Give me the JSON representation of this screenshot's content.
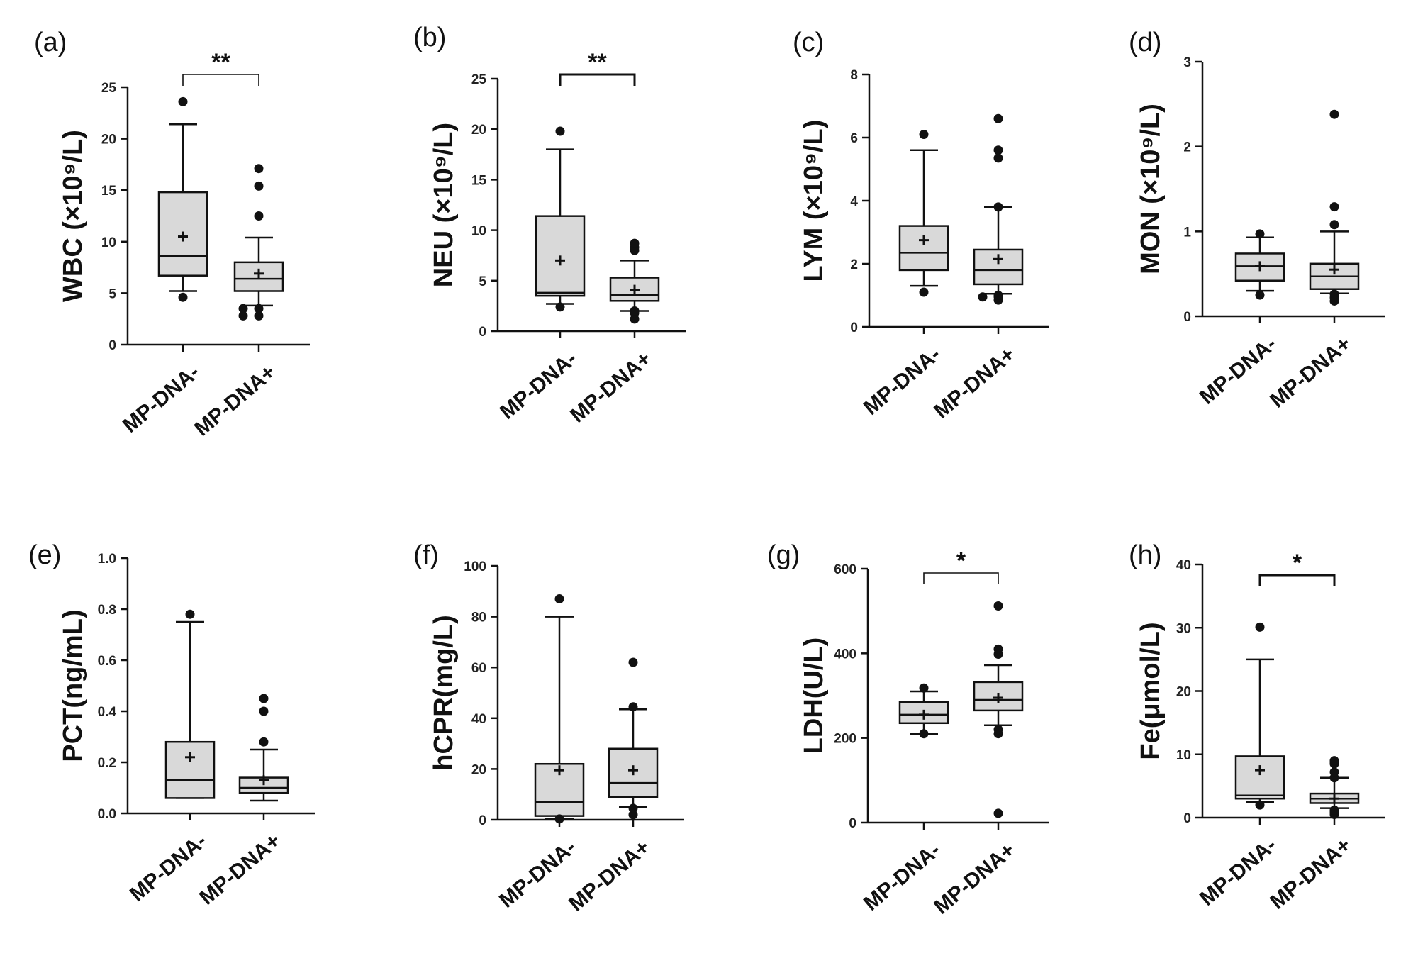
{
  "chart_data": [
    {
      "type": "box",
      "panel": "(a)",
      "ylabel": "WBC (×10⁹/L)",
      "ylim": [
        0,
        25
      ],
      "yticks": [
        "0",
        "5",
        "10",
        "15",
        "20",
        "25"
      ],
      "categories": [
        "MP-DNA-",
        "MP-DNA+"
      ],
      "significance": "**",
      "boxes": [
        {
          "whisker_low": 5.2,
          "q1": 6.7,
          "median": 8.6,
          "q3": 14.8,
          "whisker_high": 21.4,
          "mean": 10.5,
          "outliers": [
            4.6,
            23.6
          ]
        },
        {
          "whisker_low": 3.8,
          "q1": 5.2,
          "median": 6.4,
          "q3": 8.0,
          "whisker_high": 10.4,
          "mean": 6.9,
          "outliers": [
            2.8,
            2.8,
            3.5,
            3.5,
            12.5,
            15.4,
            17.1
          ]
        }
      ]
    },
    {
      "type": "box",
      "panel": "(b)",
      "ylabel": "NEU (×10⁹/L)",
      "ylim": [
        0,
        25
      ],
      "yticks": [
        "0",
        "5",
        "10",
        "15",
        "20",
        "25"
      ],
      "categories": [
        "MP-DNA-",
        "MP-DNA+"
      ],
      "significance": "**",
      "boxes": [
        {
          "whisker_low": 2.7,
          "q1": 3.5,
          "median": 3.8,
          "q3": 11.4,
          "whisker_high": 18.0,
          "mean": 7.0,
          "outliers": [
            2.4,
            19.8
          ]
        },
        {
          "whisker_low": 2.0,
          "q1": 3.0,
          "median": 3.6,
          "q3": 5.3,
          "whisker_high": 7.0,
          "mean": 4.1,
          "outliers": [
            1.2,
            1.8,
            2.0,
            8.0,
            8.3,
            8.7
          ]
        }
      ]
    },
    {
      "type": "box",
      "panel": "(c)",
      "ylabel": "LYM (×10⁹/L)",
      "ylim": [
        0,
        8
      ],
      "yticks": [
        "0",
        "2",
        "4",
        "6",
        "8"
      ],
      "categories": [
        "MP-DNA-",
        "MP-DNA+"
      ],
      "significance": "",
      "boxes": [
        {
          "whisker_low": 1.3,
          "q1": 1.8,
          "median": 2.35,
          "q3": 3.2,
          "whisker_high": 5.6,
          "mean": 2.75,
          "outliers": [
            1.1,
            6.1
          ]
        },
        {
          "whisker_low": 1.05,
          "q1": 1.35,
          "median": 1.8,
          "q3": 2.45,
          "whisker_high": 3.8,
          "mean": 2.15,
          "outliers": [
            0.85,
            0.95,
            0.95,
            1.0,
            3.8,
            5.35,
            5.6,
            6.6
          ]
        }
      ]
    },
    {
      "type": "box",
      "panel": "(d)",
      "ylabel": "MON (×10⁹/L)",
      "ylim": [
        0,
        3
      ],
      "yticks": [
        "0",
        "1",
        "2",
        "3"
      ],
      "categories": [
        "MP-DNA-",
        "MP-DNA+"
      ],
      "significance": "",
      "boxes": [
        {
          "whisker_low": 0.3,
          "q1": 0.42,
          "median": 0.59,
          "q3": 0.74,
          "whisker_high": 0.93,
          "mean": 0.59,
          "outliers": [
            0.25,
            0.97
          ]
        },
        {
          "whisker_low": 0.27,
          "q1": 0.32,
          "median": 0.47,
          "q3": 0.62,
          "whisker_high": 1.0,
          "mean": 0.55,
          "outliers": [
            0.18,
            0.22,
            0.26,
            1.08,
            1.29,
            2.38
          ]
        }
      ]
    },
    {
      "type": "box",
      "panel": "(e)",
      "ylabel": "PCT(ng/mL)",
      "ylim": [
        0,
        1.0
      ],
      "yticks": [
        "0.0",
        "0.2",
        "0.4",
        "0.6",
        "0.8",
        "1.0"
      ],
      "categories": [
        "MP-DNA-",
        "MP-DNA+"
      ],
      "significance": "",
      "boxes": [
        {
          "whisker_low": 0.06,
          "q1": 0.06,
          "median": 0.13,
          "q3": 0.28,
          "whisker_high": 0.75,
          "mean": 0.22,
          "outliers": [
            0.78
          ]
        },
        {
          "whisker_low": 0.05,
          "q1": 0.08,
          "median": 0.1,
          "q3": 0.14,
          "whisker_high": 0.25,
          "mean": 0.13,
          "outliers": [
            0.28,
            0.4,
            0.45
          ]
        }
      ]
    },
    {
      "type": "box",
      "panel": "(f)",
      "ylabel": "hCPR(mg/L)",
      "ylim": [
        0,
        100
      ],
      "yticks": [
        "0",
        "20",
        "40",
        "60",
        "80",
        "100"
      ],
      "categories": [
        "MP-DNA-",
        "MP-DNA+"
      ],
      "significance": "",
      "boxes": [
        {
          "whisker_low": 0.5,
          "q1": 1.5,
          "median": 7.0,
          "q3": 22.0,
          "whisker_high": 80.0,
          "mean": 19.5,
          "outliers": [
            0.3,
            87.0
          ]
        },
        {
          "whisker_low": 5.0,
          "q1": 9.0,
          "median": 14.5,
          "q3": 28.0,
          "whisker_high": 43.5,
          "mean": 19.5,
          "outliers": [
            2.0,
            4.5,
            44.5,
            62.0
          ]
        }
      ]
    },
    {
      "type": "box",
      "panel": "(g)",
      "ylabel": "LDH(U/L)",
      "ylim": [
        0,
        600
      ],
      "yticks": [
        "0",
        "200",
        "400",
        "600"
      ],
      "categories": [
        "MP-DNA-",
        "MP-DNA+"
      ],
      "significance": "*",
      "boxes": [
        {
          "whisker_low": 210,
          "q1": 235,
          "median": 255,
          "q3": 285,
          "whisker_high": 310,
          "mean": 255,
          "outliers": [
            210,
            318
          ]
        },
        {
          "whisker_low": 230,
          "q1": 265,
          "median": 290,
          "q3": 332,
          "whisker_high": 372,
          "mean": 295,
          "outliers": [
            22,
            210,
            220,
            398,
            410,
            512
          ]
        }
      ]
    },
    {
      "type": "box",
      "panel": "(h)",
      "ylabel": "Fe(μmol/L)",
      "ylim": [
        0,
        40
      ],
      "yticks": [
        "0",
        "10",
        "20",
        "30",
        "40"
      ],
      "categories": [
        "MP-DNA-",
        "MP-DNA+"
      ],
      "significance": "*",
      "boxes": [
        {
          "whisker_low": 2.5,
          "q1": 3.0,
          "median": 3.5,
          "q3": 9.7,
          "whisker_high": 25.0,
          "mean": 7.5,
          "outliers": [
            2.0,
            30.1
          ]
        },
        {
          "whisker_low": 1.5,
          "q1": 2.3,
          "median": 3.0,
          "q3": 3.8,
          "whisker_high": 6.3,
          "mean": 3.0,
          "outliers": [
            0.5,
            0.8,
            1.0,
            1.2,
            6.3,
            7.2,
            8.5,
            8.8,
            9.0
          ]
        }
      ]
    }
  ]
}
